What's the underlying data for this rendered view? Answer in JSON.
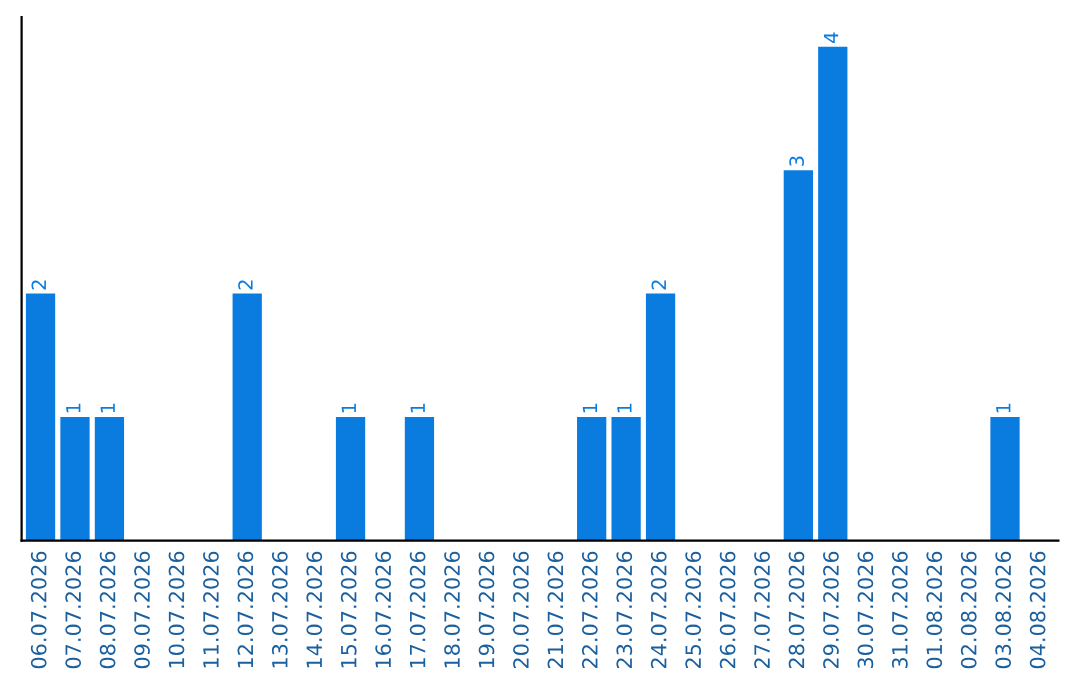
{
  "chart_data": {
    "type": "bar",
    "categories": [
      "06.07.2026",
      "07.07.2026",
      "08.07.2026",
      "09.07.2026",
      "10.07.2026",
      "11.07.2026",
      "12.07.2026",
      "13.07.2026",
      "14.07.2026",
      "15.07.2026",
      "16.07.2026",
      "17.07.2026",
      "18.07.2026",
      "19.07.2026",
      "20.07.2026",
      "21.07.2026",
      "22.07.2026",
      "23.07.2026",
      "24.07.2026",
      "25.07.2026",
      "26.07.2026",
      "27.07.2026",
      "28.07.2026",
      "29.07.2026",
      "30.07.2026",
      "31.07.2026",
      "01.08.2026",
      "02.08.2026",
      "03.08.2026",
      "04.08.2026"
    ],
    "values": [
      2,
      1,
      1,
      0,
      0,
      0,
      2,
      0,
      0,
      1,
      0,
      1,
      0,
      0,
      0,
      0,
      1,
      1,
      2,
      0,
      0,
      0,
      3,
      4,
      0,
      0,
      0,
      0,
      1,
      0
    ],
    "value_labels": [
      "2",
      "1",
      "1",
      null,
      null,
      null,
      "2",
      null,
      null,
      "1",
      null,
      "1",
      null,
      null,
      null,
      null,
      "1",
      "1",
      "2",
      null,
      null,
      null,
      "3",
      "4",
      null,
      null,
      null,
      null,
      "1",
      null
    ],
    "color": "#0a7ce0",
    "grid": false,
    "legend": false
  }
}
